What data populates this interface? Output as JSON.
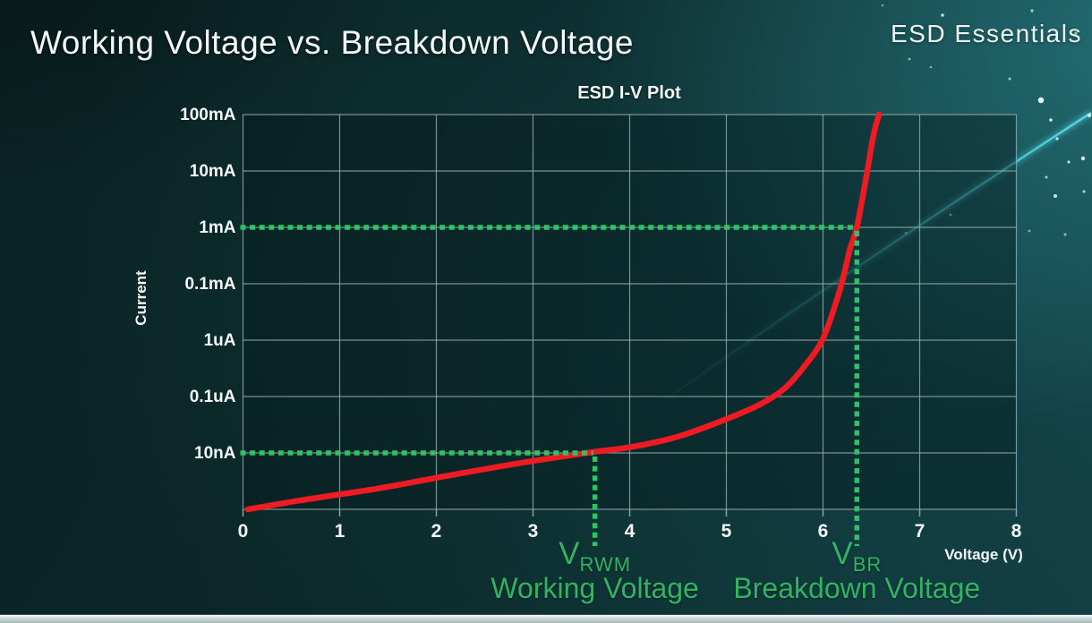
{
  "slide": {
    "title": "Working Voltage vs. Breakdown Voltage",
    "watermark": "ESD Essentials"
  },
  "colors": {
    "background_teal": "#0c2828",
    "curve_red": "#ee1b22",
    "annotation_green": "#32b364",
    "dotted_green": "#2cc465",
    "grid_gray": "#9aaba9",
    "text_white": "#f3f7f7",
    "cyan_streak": "#55dcea"
  },
  "chart_data": {
    "type": "line",
    "title": "ESD I-V Plot",
    "xlabel": "Voltage (V)",
    "ylabel": "Current",
    "x_ticks": [
      "0",
      "1",
      "2",
      "3",
      "4",
      "5",
      "6",
      "7",
      "8"
    ],
    "y_ticks": [
      "100mA",
      "10mA",
      "1mA",
      "0.1mA",
      "1uA",
      "0.1uA",
      "10nA"
    ],
    "y_scale": "logarithmic, one labeled gridline per step as printed (top line = 100mA, bottom unlabeled axis ~1nA)",
    "xlim": [
      0,
      8
    ],
    "grid": true,
    "series": [
      {
        "name": "ESD device I-V curve",
        "color": "#ee1b22",
        "points": [
          {
            "v": 0.05,
            "grid_step": 0.0,
            "approx_current": "1nA"
          },
          {
            "v": 0.6,
            "grid_step": 0.16,
            "approx_current": "1.4nA"
          },
          {
            "v": 1.4,
            "grid_step": 0.37,
            "approx_current": "2.3nA"
          },
          {
            "v": 2.1,
            "grid_step": 0.59,
            "approx_current": "3.9nA"
          },
          {
            "v": 2.9,
            "grid_step": 0.83,
            "approx_current": "6.8nA"
          },
          {
            "v": 3.64,
            "grid_step": 1.02,
            "approx_current": "10nA"
          },
          {
            "v": 4.0,
            "grid_step": 1.1,
            "approx_current": "13nA"
          },
          {
            "v": 4.5,
            "grid_step": 1.29,
            "approx_current": "20nA"
          },
          {
            "v": 5.0,
            "grid_step": 1.6,
            "approx_current": "40nA"
          },
          {
            "v": 5.35,
            "grid_step": 1.86,
            "approx_current": "72nA"
          },
          {
            "v": 5.6,
            "grid_step": 2.14,
            "approx_current": "0.14uA"
          },
          {
            "v": 5.8,
            "grid_step": 2.52,
            "approx_current": "0.3uA"
          },
          {
            "v": 6.0,
            "grid_step": 3.03,
            "approx_current": "1uA"
          },
          {
            "v": 6.17,
            "grid_step": 3.87,
            "approx_current": "0.08mA"
          },
          {
            "v": 6.28,
            "grid_step": 4.62,
            "approx_current": "0.4mA"
          },
          {
            "v": 6.35,
            "grid_step": 5.0,
            "approx_current": "1mA"
          },
          {
            "v": 6.45,
            "grid_step": 5.92,
            "approx_current": "8mA"
          },
          {
            "v": 6.52,
            "grid_step": 6.62,
            "approx_current": "40mA"
          },
          {
            "v": 6.58,
            "grid_step": 7.0,
            "approx_current": "100mA"
          }
        ]
      }
    ],
    "annotations": [
      {
        "id": "vrwm",
        "symbol": "V",
        "subscript": "RWM",
        "caption": "Working Voltage",
        "voltage": 3.64,
        "grid_step": 1,
        "current_level": "10nA"
      },
      {
        "id": "vbr",
        "symbol": "V",
        "subscript": "BR",
        "caption": "Breakdown Voltage",
        "voltage": 6.35,
        "grid_step": 5,
        "current_level": "1mA"
      }
    ]
  },
  "background": {
    "streak": {
      "from": [
        728,
        458
      ],
      "ctrl": [
        920,
        320
      ],
      "to": [
        1219,
        126
      ]
    },
    "stars": [
      [
        1163,
        112,
        3.2,
        1.0
      ],
      [
        1174,
        134,
        1.8,
        0.9
      ],
      [
        1181,
        155,
        1.6,
        0.8
      ],
      [
        1210,
        177,
        2.2,
        0.95
      ],
      [
        1194,
        181,
        1.6,
        0.75
      ],
      [
        1169,
        198,
        1.5,
        0.7
      ],
      [
        1179,
        219,
        2.0,
        0.85
      ],
      [
        1211,
        214,
        1.6,
        0.7
      ],
      [
        1053,
        17,
        1.8,
        0.8
      ],
      [
        1096,
        40,
        1.4,
        0.6
      ],
      [
        1153,
        12,
        1.6,
        0.7
      ],
      [
        1016,
        66,
        1.4,
        0.6
      ],
      [
        1128,
        88,
        1.5,
        0.65
      ],
      [
        1202,
        37,
        1.6,
        0.7
      ],
      [
        1062,
        240,
        1.5,
        0.6
      ],
      [
        1012,
        260,
        1.3,
        0.5
      ],
      [
        1150,
        258,
        1.4,
        0.55
      ],
      [
        986,
        6,
        1.3,
        0.5
      ],
      [
        1190,
        262,
        1.5,
        0.6
      ],
      [
        1217,
        129,
        2.0,
        0.9
      ],
      [
        1040,
        75,
        1.3,
        0.55
      ]
    ]
  }
}
